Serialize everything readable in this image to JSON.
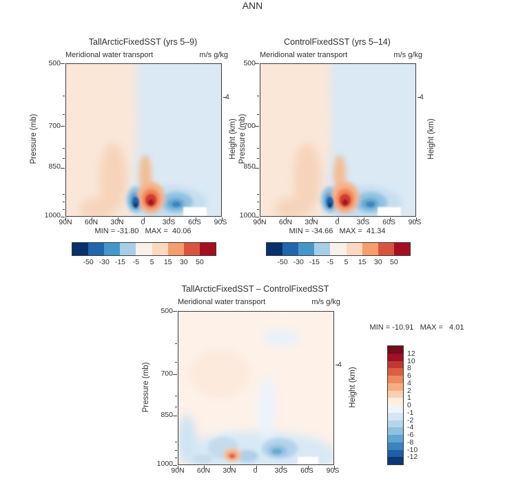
{
  "figure_title": "ANN",
  "axis_strings": {
    "left": "Meridional water transport",
    "right": "m/s g/kg",
    "ylabel": "Pressure (mb)",
    "right_label": "Height (km)",
    "right_tick": "4",
    "x_ticks": [
      "90N",
      "60N",
      "30N",
      "0",
      "30S",
      "60S",
      "90S"
    ],
    "y_ticks": [
      "500",
      "700",
      "850",
      "1000"
    ]
  },
  "panels": {
    "a": {
      "title": "TallArcticFixedSST (yrs 5–9)",
      "stats": "MIN = -31.80   MAX =  40.06"
    },
    "b": {
      "title": "ControlFixedSST (yrs 5–14)",
      "stats": "MIN = -34.66   MAX =  41.34"
    },
    "c": {
      "title": "TallArcticFixedSST – ControlFixedSST",
      "stats": "MIN = -10.91   MAX =   4.01"
    }
  },
  "colorbars": {
    "main": {
      "orient": "h",
      "colors": [
        "#08306b",
        "#2166ac",
        "#4697c9",
        "#a6cee8",
        "#f9f0e9",
        "#fbd8c0",
        "#f59d6c",
        "#d9543f",
        "#a50f22"
      ],
      "labels": [
        "-50",
        "-30",
        "-15",
        "-5",
        "5",
        "15",
        "30",
        "50"
      ]
    },
    "diff": {
      "orient": "v",
      "colors": [
        "#730c1e",
        "#9e1126",
        "#c0392f",
        "#d95f45",
        "#ed8a61",
        "#f6ad83",
        "#fbcfae",
        "#fdeede",
        "#eef4fa",
        "#d4e6f3",
        "#b5d5ea",
        "#8fc2e0",
        "#5fa6d1",
        "#3a84bf",
        "#1f5fa8",
        "#0a3875"
      ],
      "labels": [
        "12",
        "10",
        "8",
        "6",
        "4",
        "2",
        "1",
        "0",
        "-1",
        "-2",
        "-4",
        "-6",
        "-8",
        "-10",
        "-12"
      ]
    }
  },
  "chart_data": [
    {
      "type": "heatmap",
      "title": "TallArcticFixedSST (yrs 5–9)",
      "subtitle_left": "Meridional water transport",
      "units": "m/s g/kg",
      "x_ticks": [
        "90N",
        "60N",
        "30N",
        "0",
        "30S",
        "60S",
        "90S"
      ],
      "y_axis": {
        "label": "Pressure (mb)",
        "ticks": [
          500,
          700,
          850,
          1000
        ],
        "inverted": true
      },
      "right_axis": {
        "label": "Height (km)",
        "ticks": [
          4
        ]
      },
      "contour_levels": [
        -50,
        -30,
        -15,
        -5,
        5,
        15,
        30,
        50
      ],
      "min": -31.8,
      "max": 40.06,
      "legend_position": "bottom"
    },
    {
      "type": "heatmap",
      "title": "ControlFixedSST (yrs 5–14)",
      "subtitle_left": "Meridional water transport",
      "units": "m/s g/kg",
      "x_ticks": [
        "90N",
        "60N",
        "30N",
        "0",
        "30S",
        "60S",
        "90S"
      ],
      "y_axis": {
        "label": "Pressure (mb)",
        "ticks": [
          500,
          700,
          850,
          1000
        ],
        "inverted": true
      },
      "right_axis": {
        "label": "Height (km)",
        "ticks": [
          4
        ]
      },
      "contour_levels": [
        -50,
        -30,
        -15,
        -5,
        5,
        15,
        30,
        50
      ],
      "min": -34.66,
      "max": 41.34,
      "legend_position": "bottom"
    },
    {
      "type": "heatmap",
      "title": "TallArcticFixedSST – ControlFixedSST",
      "subtitle_left": "Meridional water transport",
      "units": "m/s g/kg",
      "x_ticks": [
        "90N",
        "60N",
        "30N",
        "0",
        "30S",
        "60S",
        "90S"
      ],
      "y_axis": {
        "label": "Pressure (mb)",
        "ticks": [
          500,
          700,
          850,
          1000
        ],
        "inverted": true
      },
      "right_axis": {
        "label": "Height (km)",
        "ticks": [
          4
        ]
      },
      "contour_levels": [
        -12,
        -10,
        -8,
        -6,
        -4,
        -2,
        -1,
        0,
        1,
        2,
        4,
        6,
        8,
        10,
        12
      ],
      "min": -10.91,
      "max": 4.01,
      "legend_position": "right"
    }
  ]
}
